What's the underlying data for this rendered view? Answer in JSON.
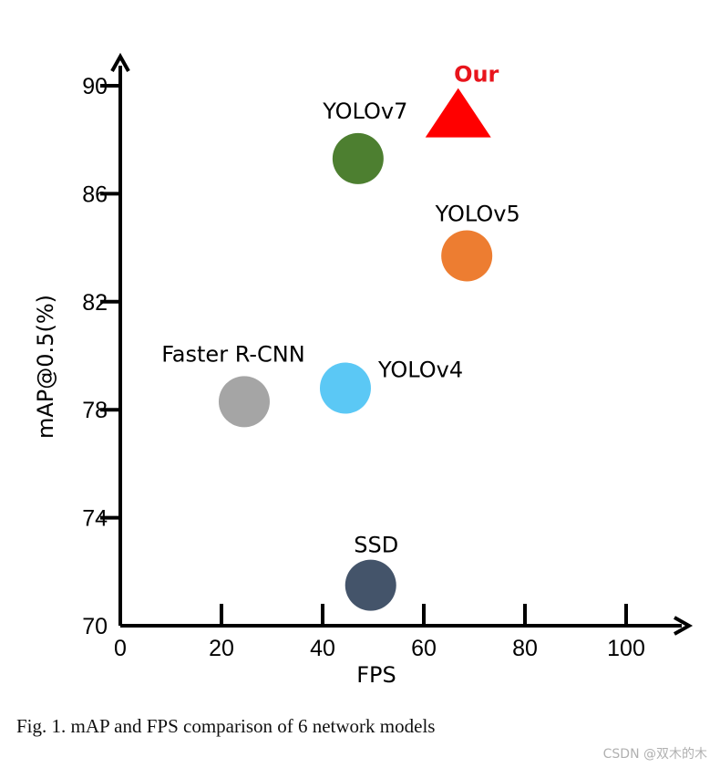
{
  "chart_data": {
    "type": "scatter",
    "title": "",
    "xlabel": "FPS",
    "ylabel": "mAP@0.5(%)",
    "xlim": [
      0,
      110
    ],
    "ylim": [
      70,
      92
    ],
    "xticks": [
      0,
      20,
      40,
      60,
      80,
      100
    ],
    "yticks": [
      70,
      74,
      78,
      82,
      86,
      90
    ],
    "xtick_labels": [
      "0",
      "20",
      "40",
      "60",
      "80",
      "100"
    ],
    "ytick_labels": [
      "70",
      "74",
      "78",
      "82",
      "86",
      "90"
    ],
    "grid": false,
    "points": [
      {
        "name": "Our",
        "x": 66.8,
        "y": 89.0,
        "marker": "triangle",
        "color": "#ff0000"
      },
      {
        "name": "YOLOv7",
        "x": 47.0,
        "y": 87.3,
        "marker": "circle",
        "color": "#4d7f30"
      },
      {
        "name": "YOLOv5",
        "x": 68.5,
        "y": 83.7,
        "marker": "circle",
        "color": "#ed7d31"
      },
      {
        "name": "Faster R-CNN",
        "x": 24.5,
        "y": 78.3,
        "marker": "circle",
        "color": "#a5a5a5"
      },
      {
        "name": "YOLOv4",
        "x": 44.5,
        "y": 78.8,
        "marker": "circle",
        "color": "#5bc8f5"
      },
      {
        "name": "SSD",
        "x": 49.5,
        "y": 71.5,
        "marker": "circle",
        "color": "#44546a"
      }
    ]
  },
  "caption": "Fig. 1.  mAP and FPS comparison of 6 network models",
  "watermark": "CSDN @双木的木"
}
